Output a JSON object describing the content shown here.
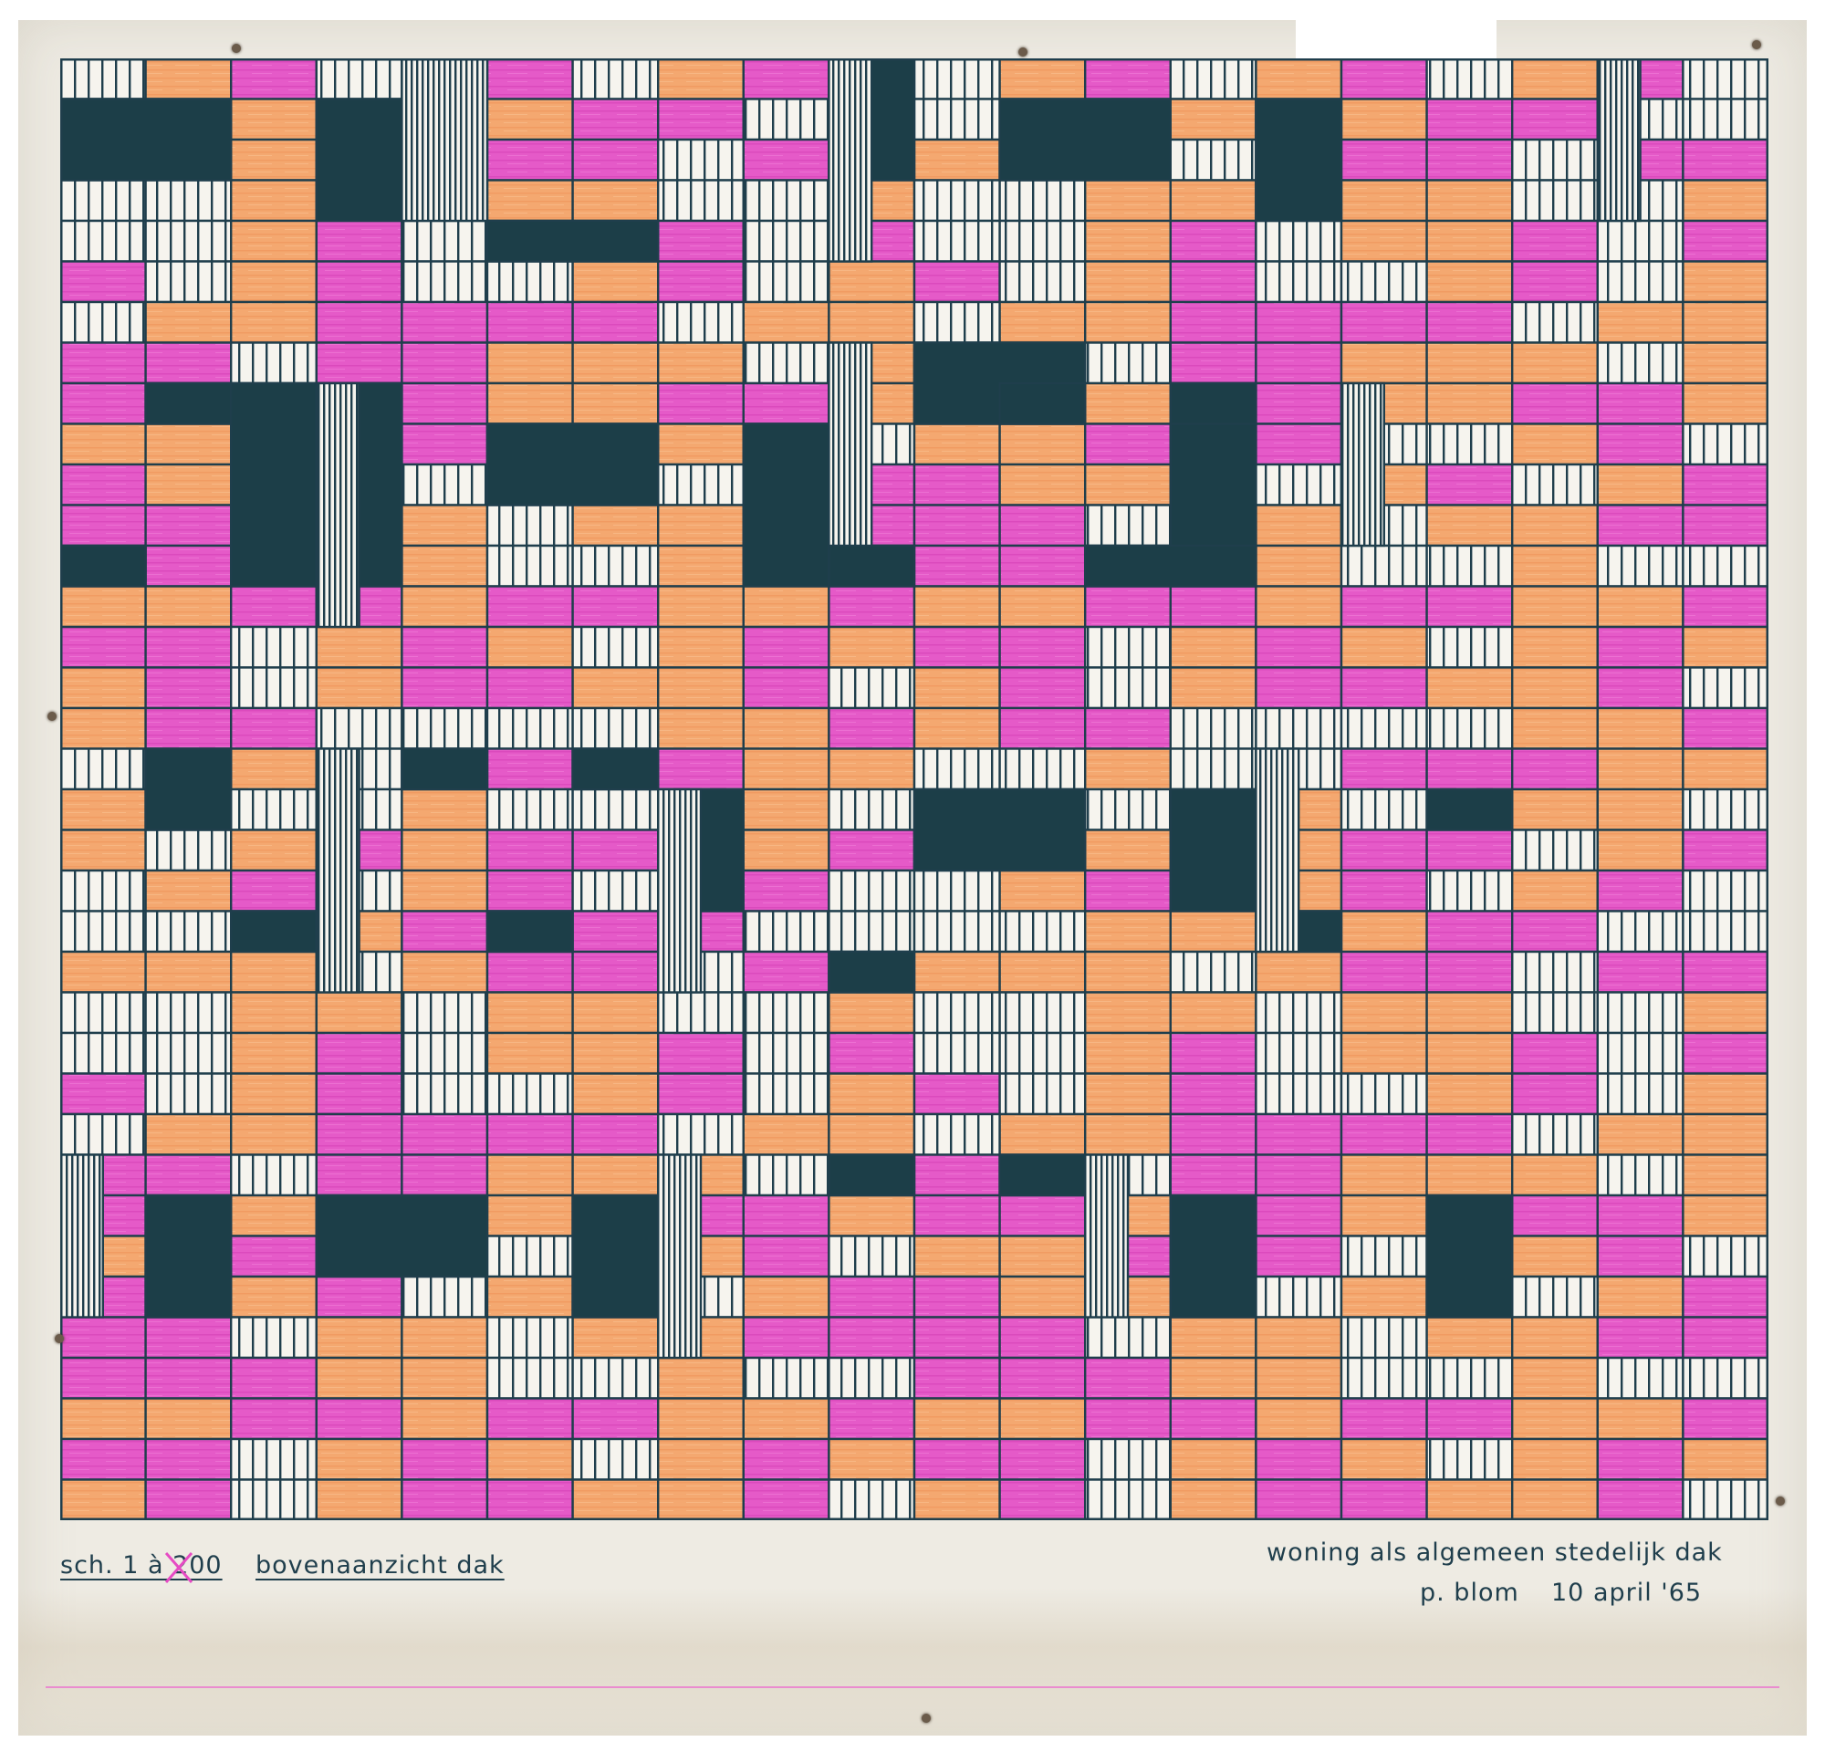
{
  "drawing": {
    "scale_label": "sch. 1 à 200",
    "view_title": "bovenaanzicht dak",
    "project_title": "woning als algemeen stedelijk dak",
    "author": "p. blom",
    "date": "10 april '65"
  },
  "colors": {
    "paper": "#eeebe3",
    "ink": "#1f3e4c",
    "dark_block": "#1c3e48",
    "magenta": "#e44fc5",
    "orange": "#f3a56d",
    "stripe_bg": "#f6f4ee"
  },
  "legend_fills": [
    "dark-slab",
    "magenta-board",
    "orange-board",
    "white-lath",
    "fine-lath"
  ]
}
